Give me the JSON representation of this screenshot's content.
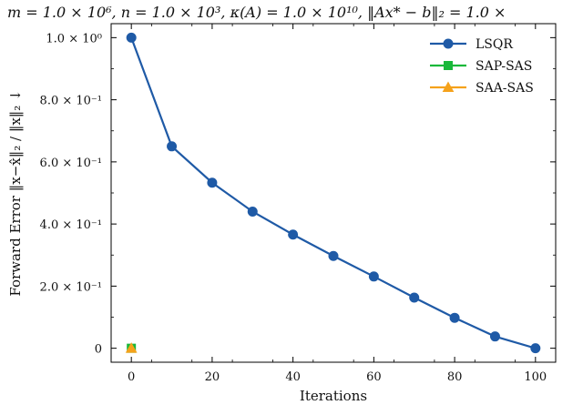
{
  "chart_data": {
    "type": "line",
    "title": "m = 1.0 × 10⁶, n = 1.0 × 10³, κ(A) = 1.0 × 10¹⁰, ‖Ax* − b‖₂ = 1.0 ×",
    "xlabel": "Iterations",
    "ylabel": "Forward Error ‖x−x̂‖₂ / ‖x‖₂ ↓",
    "xlim": [
      -5,
      105
    ],
    "ylim": [
      -0.045,
      1.045
    ],
    "x_ticks": [
      0,
      20,
      40,
      60,
      80,
      100
    ],
    "y_ticks": [
      {
        "value": 0,
        "label": "0"
      },
      {
        "value": 0.2,
        "label": "2.0 × 10⁻¹"
      },
      {
        "value": 0.4,
        "label": "4.0 × 10⁻¹"
      },
      {
        "value": 0.6,
        "label": "6.0 × 10⁻¹"
      },
      {
        "value": 0.8,
        "label": "8.0 × 10⁻¹"
      },
      {
        "value": 1.0,
        "label": "1.0 × 10⁰"
      }
    ],
    "grid": false,
    "legend_position": "top-right",
    "series": [
      {
        "name": "LSQR",
        "color": "#1f5aa6",
        "marker": "circle",
        "x": [
          0,
          10,
          20,
          30,
          40,
          50,
          60,
          70,
          80,
          90,
          100
        ],
        "values": [
          1.0,
          0.65,
          0.533,
          0.44,
          0.366,
          0.297,
          0.231,
          0.163,
          0.098,
          0.038,
          0.0
        ]
      },
      {
        "name": "SAP-SAS",
        "color": "#19b83a",
        "marker": "square",
        "x": [
          0
        ],
        "values": [
          0.0
        ]
      },
      {
        "name": "SAA-SAS",
        "color": "#f5a21b",
        "marker": "triangle",
        "x": [
          0
        ],
        "values": [
          0.0
        ]
      }
    ]
  }
}
